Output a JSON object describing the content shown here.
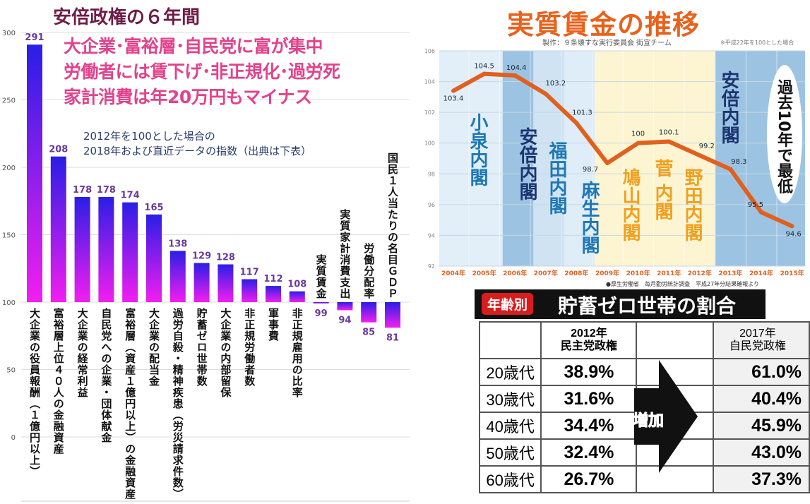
{
  "left": {
    "title": "安倍政権の６年間",
    "headline": [
      "大企業･富裕層･自民党に富が集中",
      "労働者には賃下げ･非正規化･過労死",
      "家計消費は年20万円もマイナス"
    ],
    "note": [
      "2012年を100とした場合の",
      "2018年および直近データの指数（出典は下表）"
    ]
  },
  "right": {
    "title": "実質賃金の推移",
    "credit": "製作：９条壊すな実行委員会 街宣チーム",
    "base_note": "※平成22年を100とした場合",
    "source": "●厚生労働省　毎月勤労統計調査　平成27年分結果確報より",
    "cabinets": [
      "小泉内閣",
      "安倍内閣",
      "福田内閣",
      "麻生内閣",
      "鳩山内閣",
      "菅 内閣",
      "野田内閣",
      "安倍内閣"
    ],
    "callout": "過去10年で最低"
  },
  "table": {
    "badge": "年齢別",
    "title": "貯蓄ゼロ世帯の割合",
    "col1": [
      "2012年",
      "民主党政権"
    ],
    "col2": [
      "2017年",
      "自民党政権"
    ],
    "arrow_label": "増加",
    "rows": [
      {
        "age": "20歳代",
        "y2012": "38.9%",
        "y2017": "61.0%"
      },
      {
        "age": "30歳代",
        "y2012": "31.6%",
        "y2017": "40.4%"
      },
      {
        "age": "40歳代",
        "y2012": "34.4%",
        "y2017": "45.9%"
      },
      {
        "age": "50歳代",
        "y2012": "32.4%",
        "y2017": "43.0%"
      },
      {
        "age": "60歳代",
        "y2012": "26.7%",
        "y2017": "37.3%"
      }
    ]
  },
  "colors": {
    "bar_top": "#2a1ee6",
    "bar_bottom": "#f21ef0",
    "line": "#e0601f",
    "value_label": "#6a3a9a"
  },
  "chart_data": [
    {
      "type": "bar",
      "title": "安倍政権の６年間",
      "baseline": 100,
      "ylim": [
        0,
        300
      ],
      "yticks": [
        0,
        50,
        100,
        150,
        200,
        250,
        300
      ],
      "grid": true,
      "categories": [
        "大企業の役員報酬（１億円以上）",
        "富裕層上位４０人の金融資産",
        "大企業の経常利益",
        "自民党への企業・団体献金",
        "富裕層（資産１億円以上）の金融資産",
        "大企業の配当金",
        "過労自殺・精神疾患（労災請求件数）",
        "貯蓄ゼロ世帯数",
        "大企業の内部留保",
        "非正規労働者数",
        "軍事費",
        "非正規雇用の比率",
        "実質賃金",
        "実質家計消費支出",
        "労働分配率",
        "国民１人当たりの名目ＧＤＰ"
      ],
      "values": [
        291,
        208,
        178,
        178,
        174,
        165,
        138,
        129,
        128,
        117,
        112,
        108,
        99,
        94,
        85,
        81
      ]
    },
    {
      "type": "line",
      "title": "実質賃金の推移",
      "x": [
        "2004年",
        "2005年",
        "2006年",
        "2007年",
        "2008年",
        "2009年",
        "2010年",
        "2011年",
        "2012年",
        "2013年",
        "2014年",
        "2015年"
      ],
      "values": [
        103.4,
        104.5,
        104.4,
        103.2,
        101.3,
        98.7,
        100,
        100.1,
        99.2,
        98.3,
        95.5,
        94.6
      ],
      "ylim": [
        92,
        106
      ],
      "yticks": [
        92,
        94,
        96,
        98,
        100,
        102,
        104,
        106
      ],
      "grid": true
    }
  ]
}
